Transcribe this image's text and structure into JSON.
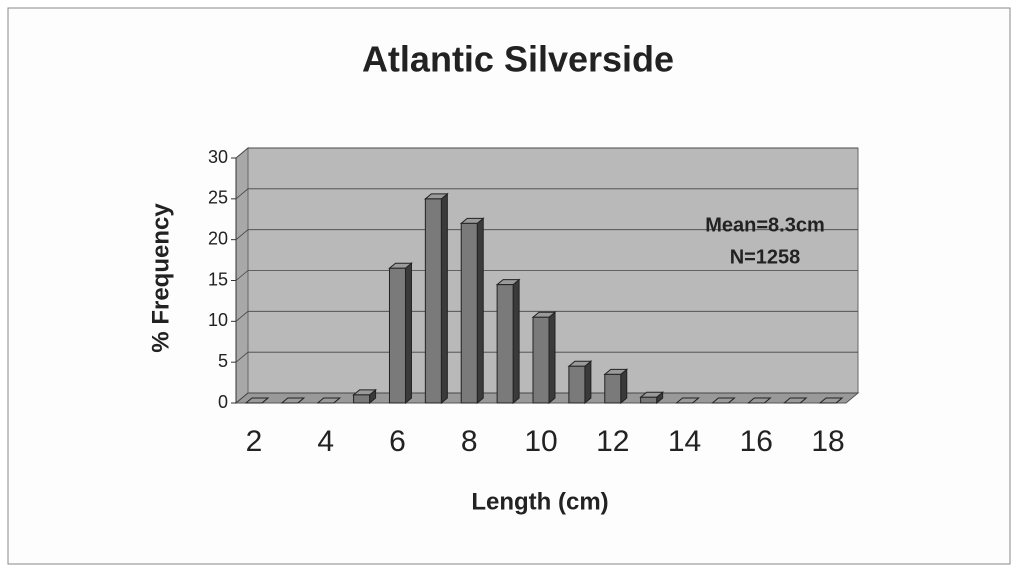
{
  "chart_data": {
    "type": "bar",
    "title": "Atlantic Silverside",
    "xlabel": "Length (cm)",
    "ylabel": "% Frequency",
    "annotations": [
      "Mean=8.3cm",
      "N=1258"
    ],
    "categories": [
      "2",
      null,
      "4",
      null,
      "6",
      null,
      "8",
      null,
      "10",
      null,
      "12",
      null,
      "14",
      null,
      "16",
      null,
      "18"
    ],
    "values": [
      0,
      0,
      0,
      1,
      16.5,
      25,
      22,
      14.5,
      10.5,
      4.5,
      3.5,
      0.7,
      0,
      0,
      0,
      0,
      0
    ],
    "color": "#7a7a7a",
    "wall_color": "#b9b9b9",
    "ylim": [
      0,
      30
    ],
    "yticks": [
      0,
      5,
      10,
      15,
      20,
      25,
      30
    ],
    "grid": true
  }
}
